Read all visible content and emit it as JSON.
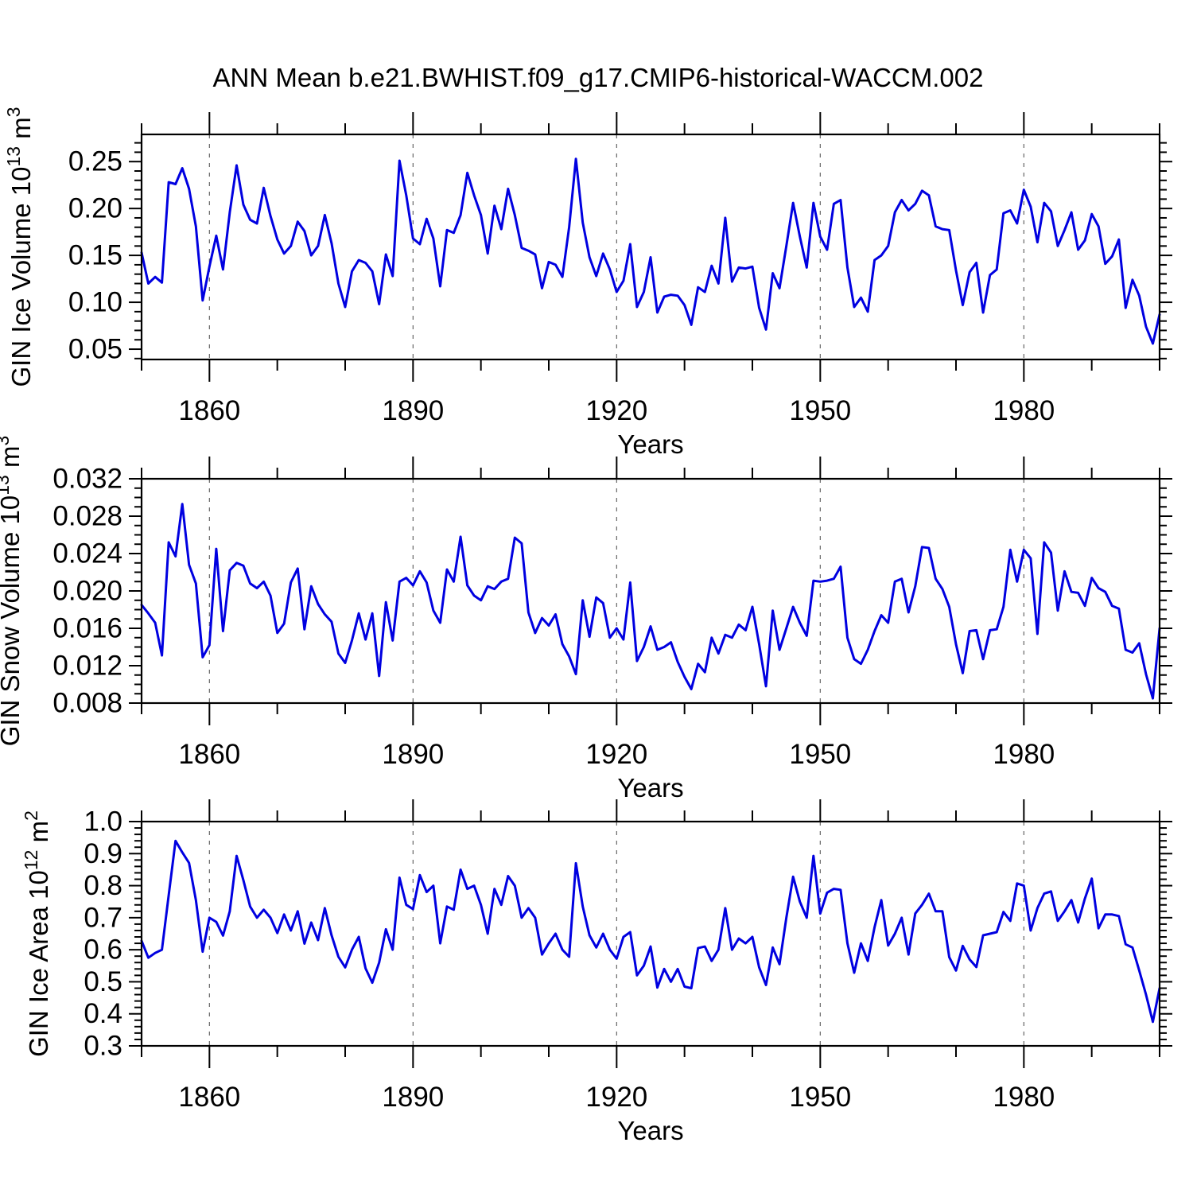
{
  "title": "ANN Mean b.e21.BWHIST.f09_g17.CMIP6-historical-WACCM.002",
  "xlabel": "Years",
  "colors": {
    "line": "#0000e0",
    "grid": "#666666",
    "axis": "#000000"
  },
  "chart_data": [
    {
      "type": "line",
      "name": "gin-ice-volume",
      "ylabel_parts": [
        {
          "t": "GIN Ice Volume 10",
          "sup": false
        },
        {
          "t": "13",
          "sup": true
        },
        {
          "t": " m",
          "sup": false
        },
        {
          "t": "3",
          "sup": true
        }
      ],
      "x_first": 1850,
      "x_step": 1,
      "xlim": [
        1850,
        2000
      ],
      "xticks": [
        1860,
        1890,
        1920,
        1950,
        1980
      ],
      "xtick_labels": [
        "1860",
        "1890",
        "1920",
        "1950",
        "1980"
      ],
      "xminor_step": 10,
      "ylim": [
        0.039,
        0.279
      ],
      "yticks": [
        0.05,
        0.1,
        0.15,
        0.2,
        0.25
      ],
      "ytick_labels": [
        "0.05",
        "0.10",
        "0.15",
        "0.20",
        "0.25"
      ],
      "yminor_step": 0.01,
      "grid": "vertical-dashed",
      "values": [
        0.153,
        0.12,
        0.127,
        0.121,
        0.228,
        0.226,
        0.243,
        0.221,
        0.181,
        0.102,
        0.138,
        0.171,
        0.135,
        0.196,
        0.246,
        0.204,
        0.188,
        0.184,
        0.222,
        0.192,
        0.167,
        0.152,
        0.16,
        0.186,
        0.176,
        0.15,
        0.16,
        0.193,
        0.163,
        0.12,
        0.095,
        0.133,
        0.145,
        0.142,
        0.133,
        0.098,
        0.151,
        0.128,
        0.251,
        0.214,
        0.168,
        0.162,
        0.189,
        0.168,
        0.117,
        0.177,
        0.174,
        0.193,
        0.238,
        0.214,
        0.193,
        0.152,
        0.203,
        0.178,
        0.221,
        0.193,
        0.158,
        0.155,
        0.151,
        0.115,
        0.143,
        0.14,
        0.127,
        0.18,
        0.253,
        0.185,
        0.148,
        0.128,
        0.152,
        0.135,
        0.111,
        0.123,
        0.162,
        0.095,
        0.111,
        0.148,
        0.089,
        0.106,
        0.108,
        0.107,
        0.097,
        0.076,
        0.116,
        0.111,
        0.139,
        0.12,
        0.19,
        0.122,
        0.137,
        0.136,
        0.138,
        0.094,
        0.071,
        0.131,
        0.115,
        0.16,
        0.206,
        0.17,
        0.137,
        0.206,
        0.17,
        0.156,
        0.205,
        0.209,
        0.137,
        0.095,
        0.105,
        0.09,
        0.145,
        0.15,
        0.16,
        0.196,
        0.209,
        0.198,
        0.205,
        0.219,
        0.214,
        0.181,
        0.178,
        0.177,
        0.134,
        0.097,
        0.132,
        0.142,
        0.089,
        0.129,
        0.135,
        0.195,
        0.198,
        0.184,
        0.22,
        0.202,
        0.164,
        0.206,
        0.197,
        0.16,
        0.177,
        0.196,
        0.156,
        0.166,
        0.194,
        0.181,
        0.141,
        0.149,
        0.167,
        0.094,
        0.124,
        0.107,
        0.074,
        0.056,
        0.087
      ]
    },
    {
      "type": "line",
      "name": "gin-snow-volume",
      "ylabel_parts": [
        {
          "t": "GIN Snow Volume 10",
          "sup": false
        },
        {
          "t": "13",
          "sup": true
        },
        {
          "t": " m",
          "sup": false
        },
        {
          "t": "3",
          "sup": true
        }
      ],
      "x_first": 1850,
      "x_step": 1,
      "xlim": [
        1850,
        2000
      ],
      "xticks": [
        1860,
        1890,
        1920,
        1950,
        1980
      ],
      "xtick_labels": [
        "1860",
        "1890",
        "1920",
        "1950",
        "1980"
      ],
      "xminor_step": 10,
      "ylim": [
        0.008,
        0.032
      ],
      "yticks": [
        0.008,
        0.012,
        0.016,
        0.02,
        0.024,
        0.028,
        0.032
      ],
      "ytick_labels": [
        "0.008",
        "0.012",
        "0.016",
        "0.020",
        "0.024",
        "0.028",
        "0.032"
      ],
      "yminor_step": 0.001,
      "grid": "vertical-dashed",
      "values": [
        0.0185,
        0.0176,
        0.0166,
        0.0131,
        0.0252,
        0.0237,
        0.0293,
        0.0228,
        0.0208,
        0.0129,
        0.0142,
        0.0245,
        0.0157,
        0.0222,
        0.023,
        0.0227,
        0.0208,
        0.0203,
        0.021,
        0.0195,
        0.0155,
        0.0165,
        0.0209,
        0.0224,
        0.0159,
        0.0205,
        0.0186,
        0.0175,
        0.0167,
        0.0133,
        0.0123,
        0.0147,
        0.0176,
        0.0148,
        0.0176,
        0.0109,
        0.0188,
        0.0147,
        0.021,
        0.0214,
        0.0206,
        0.0221,
        0.0209,
        0.0179,
        0.0166,
        0.0223,
        0.021,
        0.0258,
        0.0206,
        0.0195,
        0.019,
        0.0205,
        0.0202,
        0.021,
        0.0213,
        0.0257,
        0.0251,
        0.0177,
        0.0155,
        0.0171,
        0.0163,
        0.0175,
        0.0143,
        0.013,
        0.0111,
        0.019,
        0.0151,
        0.0193,
        0.0187,
        0.015,
        0.016,
        0.0148,
        0.0209,
        0.0125,
        0.014,
        0.0162,
        0.0137,
        0.014,
        0.0145,
        0.0124,
        0.0108,
        0.0095,
        0.0122,
        0.0113,
        0.015,
        0.0133,
        0.0153,
        0.015,
        0.0164,
        0.0158,
        0.0183,
        0.0143,
        0.0098,
        0.0179,
        0.0137,
        0.016,
        0.0183,
        0.0166,
        0.0152,
        0.0211,
        0.021,
        0.0211,
        0.0213,
        0.0226,
        0.015,
        0.0127,
        0.0122,
        0.0137,
        0.0157,
        0.0174,
        0.0166,
        0.021,
        0.0213,
        0.0177,
        0.0205,
        0.0247,
        0.0246,
        0.0213,
        0.0202,
        0.0183,
        0.0143,
        0.0112,
        0.0157,
        0.0158,
        0.0127,
        0.0158,
        0.0159,
        0.0183,
        0.0244,
        0.021,
        0.0244,
        0.0235,
        0.0154,
        0.0252,
        0.0241,
        0.0179,
        0.0221,
        0.0199,
        0.0198,
        0.0184,
        0.0214,
        0.0203,
        0.0199,
        0.0184,
        0.0181,
        0.0137,
        0.0134,
        0.0144,
        0.0111,
        0.0085,
        0.016
      ]
    },
    {
      "type": "line",
      "name": "gin-ice-area",
      "ylabel_parts": [
        {
          "t": "GIN Ice Area 10",
          "sup": false
        },
        {
          "t": "12",
          "sup": true
        },
        {
          "t": " m",
          "sup": false
        },
        {
          "t": "2",
          "sup": true
        }
      ],
      "x_first": 1850,
      "x_step": 1,
      "xlim": [
        1850,
        2000
      ],
      "xticks": [
        1860,
        1890,
        1920,
        1950,
        1980
      ],
      "xtick_labels": [
        "1860",
        "1890",
        "1920",
        "1950",
        "1980"
      ],
      "xminor_step": 10,
      "ylim": [
        0.3,
        1.0
      ],
      "yticks": [
        0.3,
        0.4,
        0.5,
        0.6,
        0.7,
        0.8,
        0.9,
        1.0
      ],
      "ytick_labels": [
        "0.3",
        "0.4",
        "0.5",
        "0.6",
        "0.7",
        "0.8",
        "0.9",
        "1.0"
      ],
      "yminor_step": 0.02,
      "grid": "vertical-dashed",
      "values": [
        0.628,
        0.575,
        0.59,
        0.6,
        0.77,
        0.94,
        0.904,
        0.871,
        0.755,
        0.594,
        0.7,
        0.687,
        0.644,
        0.72,
        0.893,
        0.817,
        0.735,
        0.7,
        0.725,
        0.7,
        0.652,
        0.71,
        0.66,
        0.72,
        0.619,
        0.685,
        0.63,
        0.73,
        0.645,
        0.578,
        0.545,
        0.6,
        0.64,
        0.542,
        0.497,
        0.56,
        0.664,
        0.6,
        0.825,
        0.74,
        0.727,
        0.833,
        0.78,
        0.8,
        0.62,
        0.735,
        0.725,
        0.85,
        0.79,
        0.8,
        0.74,
        0.65,
        0.79,
        0.74,
        0.83,
        0.8,
        0.7,
        0.73,
        0.7,
        0.585,
        0.62,
        0.65,
        0.6,
        0.578,
        0.87,
        0.735,
        0.645,
        0.607,
        0.65,
        0.6,
        0.572,
        0.64,
        0.655,
        0.52,
        0.55,
        0.61,
        0.482,
        0.54,
        0.5,
        0.54,
        0.485,
        0.48,
        0.605,
        0.61,
        0.565,
        0.6,
        0.73,
        0.6,
        0.635,
        0.62,
        0.64,
        0.545,
        0.49,
        0.607,
        0.555,
        0.7,
        0.828,
        0.75,
        0.7,
        0.893,
        0.713,
        0.778,
        0.79,
        0.787,
        0.62,
        0.528,
        0.62,
        0.565,
        0.67,
        0.755,
        0.613,
        0.65,
        0.7,
        0.585,
        0.713,
        0.74,
        0.775,
        0.72,
        0.72,
        0.577,
        0.535,
        0.612,
        0.57,
        0.546,
        0.645,
        0.65,
        0.655,
        0.718,
        0.69,
        0.807,
        0.8,
        0.66,
        0.73,
        0.775,
        0.782,
        0.69,
        0.72,
        0.755,
        0.685,
        0.76,
        0.822,
        0.667,
        0.71,
        0.71,
        0.705,
        0.617,
        0.607,
        0.535,
        0.46,
        0.375,
        0.48
      ]
    }
  ]
}
